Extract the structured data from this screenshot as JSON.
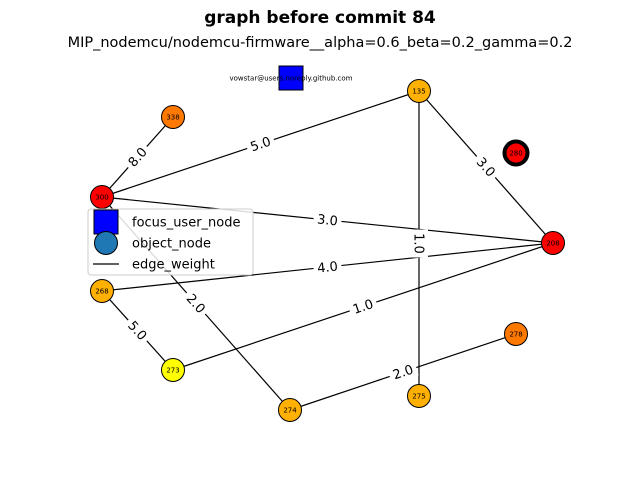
{
  "title": "graph before commit 84",
  "subtitle": "MIP_nodemcu/nodemcu-firmware__alpha=0.6_beta=0.2_gamma=0.2",
  "focus_user": {
    "label": "vowstar@users.noreply.github.com",
    "color": "#0000ff"
  },
  "nodes": [
    {
      "id": "135",
      "label": "135",
      "color": "#ffb000"
    },
    {
      "id": "338",
      "label": "338",
      "color": "#ff7800"
    },
    {
      "id": "280",
      "label": "280",
      "color": "#ff0000",
      "highlighted": true
    },
    {
      "id": "300",
      "label": "300",
      "color": "#ff0000"
    },
    {
      "id": "208",
      "label": "208",
      "color": "#ff0000"
    },
    {
      "id": "268",
      "label": "268",
      "color": "#ffb000"
    },
    {
      "id": "278",
      "label": "278",
      "color": "#ff7800"
    },
    {
      "id": "273",
      "label": "273",
      "color": "#ffff00"
    },
    {
      "id": "274",
      "label": "274",
      "color": "#ffb000"
    },
    {
      "id": "275",
      "label": "275",
      "color": "#ffb000"
    }
  ],
  "edges": [
    {
      "source": "300",
      "target": "338",
      "weight": "8.0"
    },
    {
      "source": "300",
      "target": "135",
      "weight": "5.0"
    },
    {
      "source": "300",
      "target": "208",
      "weight": "3.0"
    },
    {
      "source": "300",
      "target": "274",
      "weight": "2.0"
    },
    {
      "source": "135",
      "target": "208",
      "weight": "3.0"
    },
    {
      "source": "135",
      "target": "275",
      "weight": "1.0"
    },
    {
      "source": "268",
      "target": "208",
      "weight": "4.0"
    },
    {
      "source": "268",
      "target": "273",
      "weight": "5.0"
    },
    {
      "source": "273",
      "target": "208",
      "weight": "1.0"
    },
    {
      "source": "274",
      "target": "278",
      "weight": "2.0"
    }
  ],
  "legend": {
    "items": [
      {
        "label": "focus_user_node",
        "symbol": "square",
        "color": "#0000ff"
      },
      {
        "label": "object_node",
        "symbol": "circle",
        "color": "#1f77b4"
      },
      {
        "label": "edge_weight",
        "symbol": "line",
        "color": "#000000"
      }
    ]
  }
}
